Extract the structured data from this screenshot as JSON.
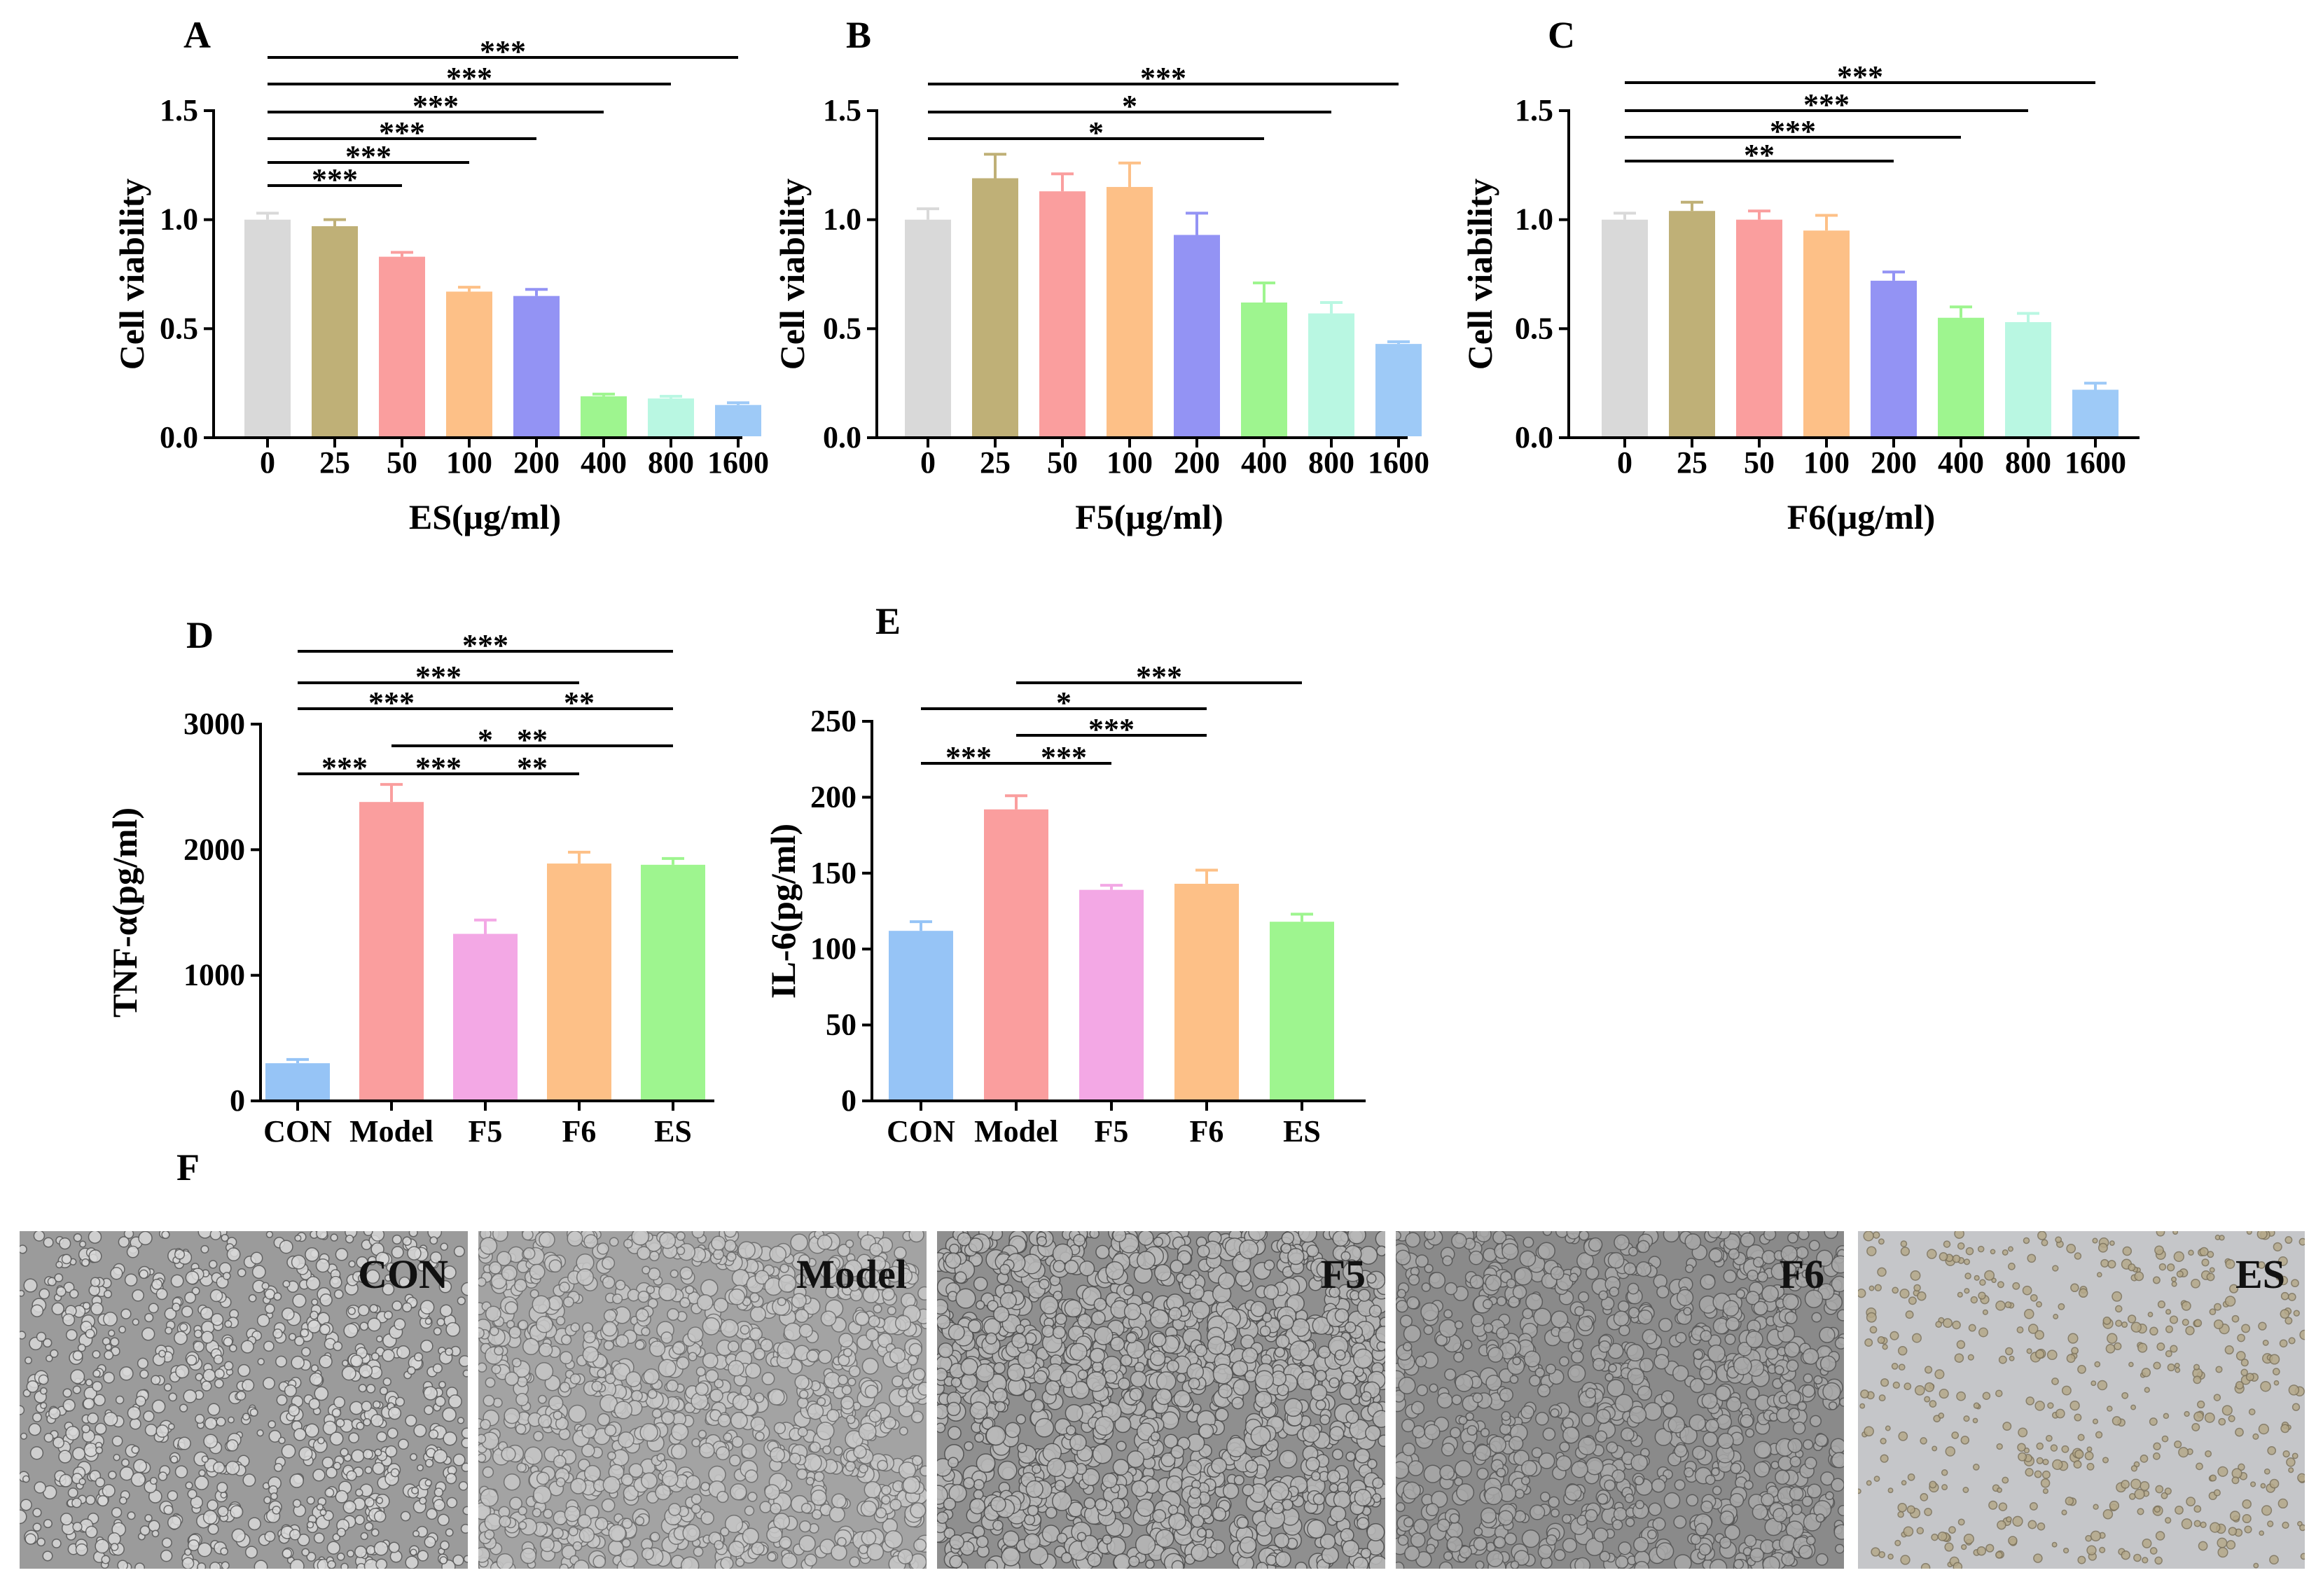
{
  "panel_F": {
    "label": "F",
    "images": [
      {
        "label": "CON",
        "bg": "#9b9b9b",
        "cell": "#d9d9d9",
        "dark": "#5a5a5a",
        "cells": 900,
        "r": 7
      },
      {
        "label": "Model",
        "bg": "#a3a3a3",
        "cell": "#c8c8c8",
        "dark": "#6a6a6a",
        "cells": 1100,
        "r": 9
      },
      {
        "label": "F5",
        "bg": "#8f8f8f",
        "cell": "#b9b9b9",
        "dark": "#4d4d4d",
        "cells": 1300,
        "r": 10
      },
      {
        "label": "F6",
        "bg": "#8a8a8a",
        "cell": "#a9a9a9",
        "dark": "#555555",
        "cells": 1000,
        "r": 9
      },
      {
        "label": "ES",
        "bg": "#c5c6c9",
        "cell": "#b5a98a",
        "dark": "#7d735c",
        "cells": 500,
        "r": 5
      }
    ]
  },
  "chart_data": [
    {
      "panel": "A",
      "type": "bar",
      "categories": [
        "0",
        "25",
        "50",
        "100",
        "200",
        "400",
        "800",
        "1600"
      ],
      "values": [
        1.0,
        0.97,
        0.83,
        0.67,
        0.65,
        0.19,
        0.18,
        0.15
      ],
      "errors": [
        0.03,
        0.03,
        0.02,
        0.02,
        0.03,
        0.01,
        0.01,
        0.01
      ],
      "colors": [
        "#d9d9d9",
        "#bfb077",
        "#fa9e9e",
        "#fdc087",
        "#9393f4",
        "#9ef58f",
        "#b9f7e2",
        "#9ecaf7"
      ],
      "xlabel": "ES(μg/ml)",
      "ylabel": "Cell viability",
      "ylim": [
        0,
        1.5
      ],
      "yticks": [
        "0.0",
        "0.5",
        "1.0",
        "1.5"
      ],
      "ytick_values": [
        0,
        0.5,
        1.0,
        1.5
      ],
      "significance": [
        {
          "from": 0,
          "to": 2,
          "label": "***"
        },
        {
          "from": 0,
          "to": 3,
          "label": "***"
        },
        {
          "from": 0,
          "to": 4,
          "label": "***"
        },
        {
          "from": 0,
          "to": 5,
          "label": "***"
        },
        {
          "from": 0,
          "to": 6,
          "label": "***"
        },
        {
          "from": 0,
          "to": 7,
          "label": "***"
        }
      ]
    },
    {
      "panel": "B",
      "type": "bar",
      "categories": [
        "0",
        "25",
        "50",
        "100",
        "200",
        "400",
        "800",
        "1600"
      ],
      "values": [
        1.0,
        1.19,
        1.13,
        1.15,
        0.93,
        0.62,
        0.57,
        0.43
      ],
      "errors": [
        0.05,
        0.11,
        0.08,
        0.11,
        0.1,
        0.09,
        0.05,
        0.01
      ],
      "colors": [
        "#d9d9d9",
        "#bfb077",
        "#fa9e9e",
        "#fdc087",
        "#9393f4",
        "#9ef58f",
        "#b9f7e2",
        "#9ecaf7"
      ],
      "xlabel": "F5(μg/ml)",
      "ylabel": "Cell viability",
      "ylim": [
        0,
        1.5
      ],
      "yticks": [
        "0.0",
        "0.5",
        "1.0",
        "1.5"
      ],
      "ytick_values": [
        0,
        0.5,
        1.0,
        1.5
      ],
      "significance": [
        {
          "from": 0,
          "to": 5,
          "label": "*"
        },
        {
          "from": 0,
          "to": 6,
          "label": "*"
        },
        {
          "from": 0,
          "to": 7,
          "label": "***"
        }
      ]
    },
    {
      "panel": "C",
      "type": "bar",
      "categories": [
        "0",
        "25",
        "50",
        "100",
        "200",
        "400",
        "800",
        "1600"
      ],
      "values": [
        1.0,
        1.04,
        1.0,
        0.95,
        0.72,
        0.55,
        0.53,
        0.22
      ],
      "errors": [
        0.03,
        0.04,
        0.04,
        0.07,
        0.04,
        0.05,
        0.04,
        0.03
      ],
      "colors": [
        "#d9d9d9",
        "#bfb077",
        "#fa9e9e",
        "#fdc087",
        "#9393f4",
        "#9ef58f",
        "#b9f7e2",
        "#9ecaf7"
      ],
      "xlabel": "F6(μg/ml)",
      "ylabel": "Cell viability",
      "ylim": [
        0,
        1.5
      ],
      "yticks": [
        "0.0",
        "0.5",
        "1.0",
        "1.5"
      ],
      "ytick_values": [
        0,
        0.5,
        1.0,
        1.5
      ],
      "significance": [
        {
          "from": 0,
          "to": 4,
          "label": "**"
        },
        {
          "from": 0,
          "to": 5,
          "label": "***"
        },
        {
          "from": 0,
          "to": 6,
          "label": "***"
        },
        {
          "from": 0,
          "to": 7,
          "label": "***"
        }
      ]
    },
    {
      "panel": "D",
      "type": "bar",
      "categories": [
        "CON",
        "Model",
        "F5",
        "F6",
        "ES"
      ],
      "values": [
        300,
        2380,
        1330,
        1890,
        1880
      ],
      "errors": [
        30,
        140,
        110,
        90,
        50
      ],
      "colors": [
        "#96c4f6",
        "#fa9e9e",
        "#f3a8e5",
        "#fdc087",
        "#9ef58f"
      ],
      "xlabel": "",
      "ylabel": "TNF-α(pg/ml)",
      "ylim": [
        0,
        3000
      ],
      "yticks": [
        "0",
        "1000",
        "2000",
        "3000"
      ],
      "ytick_values": [
        0,
        1000,
        2000,
        3000
      ],
      "significance": [
        {
          "from": 0,
          "to": 1,
          "label": "***"
        },
        {
          "from": 1,
          "to": 2,
          "label": "***"
        },
        {
          "from": 2,
          "to": 3,
          "label": "**"
        },
        {
          "from": 1,
          "to": 3,
          "label": "*"
        },
        {
          "from": 1,
          "to": 4,
          "label": "**"
        },
        {
          "from": 0,
          "to": 2,
          "label": "***"
        },
        {
          "from": 2,
          "to": 4,
          "label": "**"
        },
        {
          "from": 0,
          "to": 3,
          "label": "***"
        },
        {
          "from": 0,
          "to": 4,
          "label": "***"
        }
      ]
    },
    {
      "panel": "E",
      "type": "bar",
      "categories": [
        "CON",
        "Model",
        "F5",
        "F6",
        "ES"
      ],
      "values": [
        112,
        192,
        139,
        143,
        118
      ],
      "errors": [
        6,
        9,
        3,
        9,
        5
      ],
      "colors": [
        "#96c4f6",
        "#fa9e9e",
        "#f3a8e5",
        "#fdc087",
        "#9ef58f"
      ],
      "xlabel": "",
      "ylabel": "IL-6(pg/ml)",
      "ylim": [
        0,
        250
      ],
      "yticks": [
        "0",
        "50",
        "100",
        "150",
        "200",
        "250"
      ],
      "ytick_values": [
        0,
        50,
        100,
        150,
        200,
        250
      ],
      "significance": [
        {
          "from": 0,
          "to": 1,
          "label": "***"
        },
        {
          "from": 1,
          "to": 2,
          "label": "***"
        },
        {
          "from": 1,
          "to": 3,
          "label": "***"
        },
        {
          "from": 0,
          "to": 3,
          "label": "*"
        },
        {
          "from": 1,
          "to": 4,
          "label": "***"
        }
      ]
    }
  ]
}
